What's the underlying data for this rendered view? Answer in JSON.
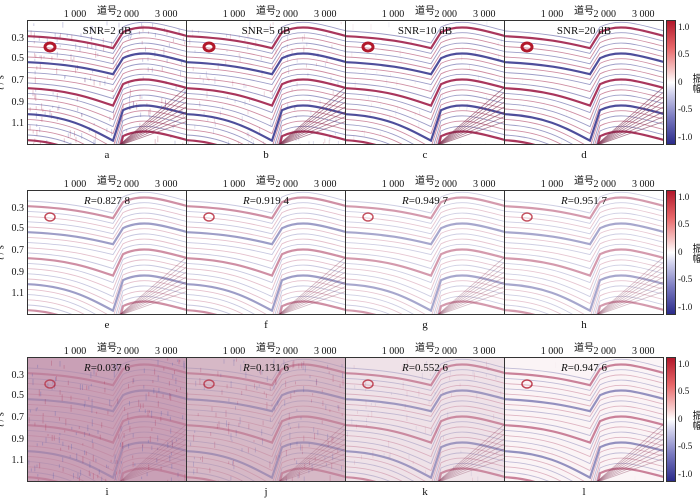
{
  "axis": {
    "top_label": "道号",
    "x_ticks": [
      "1 000",
      "2 000",
      "3 000"
    ],
    "y_label_var": "t",
    "y_label_unit": " / s",
    "y_ticks": [
      "0.3",
      "0.5",
      "0.7",
      "0.9",
      "1.1"
    ]
  },
  "colorbar": {
    "label": "振幅",
    "ticks": [
      "1.0",
      "0.5",
      "0",
      "-0.5",
      "-1.0"
    ],
    "colors": [
      "#b2182b",
      "#ffffff",
      "#2b2b8a"
    ]
  },
  "rows": [
    {
      "panels": [
        {
          "letter": "a",
          "prefix": "",
          "text": "SNR=2 dB"
        },
        {
          "letter": "b",
          "prefix": "",
          "text": "SNR=5 dB"
        },
        {
          "letter": "c",
          "prefix": "",
          "text": "SNR=10 dB"
        },
        {
          "letter": "d",
          "prefix": "",
          "text": "SNR=20 dB"
        }
      ]
    },
    {
      "panels": [
        {
          "letter": "e",
          "prefix": "R",
          "text": "=0.827 8"
        },
        {
          "letter": "f",
          "prefix": "R",
          "text": "=0.919 4"
        },
        {
          "letter": "g",
          "prefix": "R",
          "text": "=0.949 7"
        },
        {
          "letter": "h",
          "prefix": "R",
          "text": "=0.951 7"
        }
      ]
    },
    {
      "panels": [
        {
          "letter": "i",
          "prefix": "R",
          "text": "=0.037 6"
        },
        {
          "letter": "j",
          "prefix": "R",
          "text": "=0.131 6"
        },
        {
          "letter": "k",
          "prefix": "R",
          "text": "=0.552 6"
        },
        {
          "letter": "l",
          "prefix": "R",
          "text": "=0.947 6"
        }
      ]
    }
  ]
}
